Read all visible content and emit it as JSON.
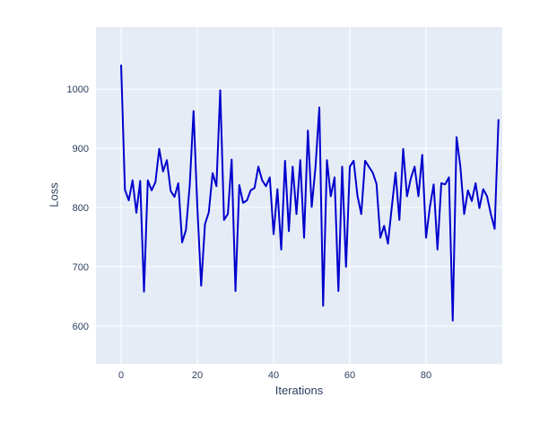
{
  "figure": {
    "title": ""
  },
  "chart_data": {
    "type": "line",
    "title": "",
    "xlabel": "Iterations",
    "ylabel": "Loss",
    "legend": null,
    "grid": true,
    "xticks": [
      0,
      20,
      40,
      60,
      80
    ],
    "yticks": [
      600,
      700,
      800,
      900,
      1000
    ],
    "xlim": [
      -6.6,
      100
    ],
    "ylim": [
      536,
      1105
    ],
    "x": [
      0,
      1,
      2,
      3,
      4,
      5,
      6,
      7,
      8,
      9,
      10,
      11,
      12,
      13,
      14,
      15,
      16,
      17,
      18,
      19,
      20,
      21,
      22,
      23,
      24,
      25,
      26,
      27,
      28,
      29,
      30,
      31,
      32,
      33,
      34,
      35,
      36,
      37,
      38,
      39,
      40,
      41,
      42,
      43,
      44,
      45,
      46,
      47,
      48,
      49,
      50,
      51,
      52,
      53,
      54,
      55,
      56,
      57,
      58,
      59,
      60,
      61,
      62,
      63,
      64,
      65,
      66,
      67,
      68,
      69,
      70,
      71,
      72,
      73,
      74,
      75,
      76,
      77,
      78,
      79,
      80,
      81,
      82,
      83,
      84,
      85,
      86,
      87,
      88,
      89,
      90,
      91,
      92,
      93,
      94,
      95,
      96,
      97,
      98,
      99
    ],
    "y": [
      1040,
      830,
      812,
      846,
      791,
      845,
      658,
      846,
      829,
      843,
      899,
      861,
      880,
      828,
      818,
      841,
      741,
      762,
      838,
      963,
      800,
      668,
      772,
      792,
      858,
      836,
      998,
      779,
      789,
      881,
      659,
      838,
      808,
      812,
      829,
      833,
      869,
      846,
      836,
      851,
      755,
      831,
      729,
      879,
      760,
      869,
      789,
      880,
      749,
      930,
      801,
      869,
      969,
      634,
      880,
      819,
      851,
      659,
      869,
      700,
      869,
      879,
      820,
      789,
      879,
      869,
      859,
      840,
      749,
      769,
      739,
      800,
      859,
      779,
      899,
      819,
      849,
      869,
      819,
      889,
      749,
      801,
      839,
      729,
      841,
      839,
      851,
      609,
      919,
      869,
      789,
      829,
      811,
      841,
      799,
      831,
      819,
      789,
      764,
      948
    ],
    "colors": {
      "line": "#0000cd",
      "plot_bg": "#e5ecf6",
      "grid": "#ffffff",
      "text": "#2a3f5f",
      "page_bg": "#ffffff"
    }
  }
}
